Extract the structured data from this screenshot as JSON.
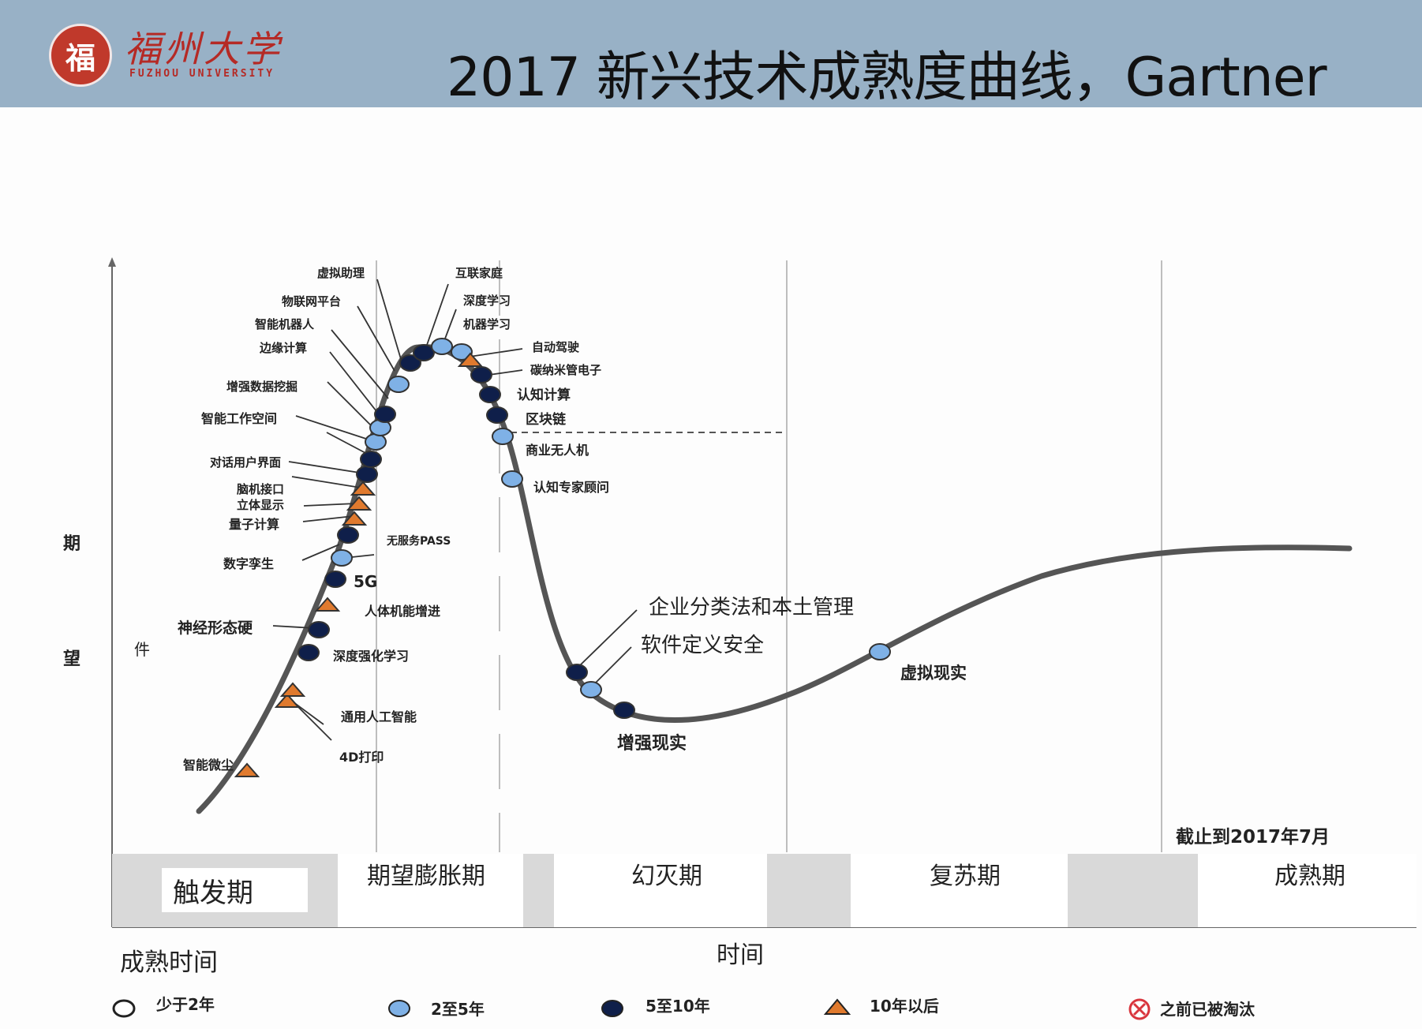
{
  "header": {
    "logo_emblem": "福",
    "logo_cn": "福州大学",
    "logo_en": "FUZHOU UNIVERSITY",
    "title": "2017 新兴技术成熟度曲线，Gartner"
  },
  "colors": {
    "header_bg": "#98b1c6",
    "light_blue": "#7fb1e6",
    "dark_navy": "#0f1f4a",
    "orange": "#e07a2e",
    "curve": "#555555",
    "phase_gray": "#d9d9d9"
  },
  "chart": {
    "ylabel_1": "期",
    "ylabel_2": "望",
    "xlabel": "时间",
    "stray_label": "件",
    "as_of": "截止到2017年7月",
    "phases": [
      "触发期",
      "期望膨胀期",
      "幻灭期",
      "复苏期",
      "成熟期"
    ]
  },
  "technologies": [
    {
      "name": "智能微尘",
      "category": "10+"
    },
    {
      "name": "4D打印",
      "category": "10+"
    },
    {
      "name": "通用人工智能",
      "category": "10+"
    },
    {
      "name": "深度强化学习",
      "category": "5-10"
    },
    {
      "name": "神经形态硬",
      "category": "5-10"
    },
    {
      "name": "人体机能增进",
      "category": "10+"
    },
    {
      "name": "5G",
      "category": "5-10"
    },
    {
      "name": "数字孪生",
      "category": "2-5"
    },
    {
      "name": "无服务PASS",
      "category": "5-10"
    },
    {
      "name": "量子计算",
      "category": "10+"
    },
    {
      "name": "立体显示",
      "category": "10+"
    },
    {
      "name": "脑机接口",
      "category": "10+"
    },
    {
      "name": "对话用户界面",
      "category": "5-10"
    },
    {
      "name": "智能工作空间",
      "category": "2-5"
    },
    {
      "name": "增强数据挖掘",
      "category": "2-5"
    },
    {
      "name": "边缘计算",
      "category": "5-10"
    },
    {
      "name": "智能机器人",
      "category": "2-5"
    },
    {
      "name": "物联网平台",
      "category": "5-10"
    },
    {
      "name": "虚拟助理",
      "category": "5-10"
    },
    {
      "name": "互联家庭",
      "category": "2-5"
    },
    {
      "name": "深度学习",
      "category": "2-5"
    },
    {
      "name": "机器学习",
      "category": "2-5"
    },
    {
      "name": "自动驾驶",
      "category": "10+"
    },
    {
      "name": "碳纳米管电子",
      "category": "5-10"
    },
    {
      "name": "认知计算",
      "category": "5-10"
    },
    {
      "name": "区块链",
      "category": "5-10"
    },
    {
      "name": "商业无人机",
      "category": "2-5"
    },
    {
      "name": "认知专家顾问",
      "category": "2-5"
    },
    {
      "name": "企业分类法和本土管理",
      "category": "5-10"
    },
    {
      "name": "软件定义安全",
      "category": "2-5"
    },
    {
      "name": "增强现实",
      "category": "5-10"
    },
    {
      "name": "虚拟现实",
      "category": "2-5"
    }
  ],
  "legend": {
    "title": "成熟时间",
    "items": [
      "少于2年",
      "2至5年",
      "5至10年",
      "10年以后",
      "之前已被淘汰"
    ]
  }
}
